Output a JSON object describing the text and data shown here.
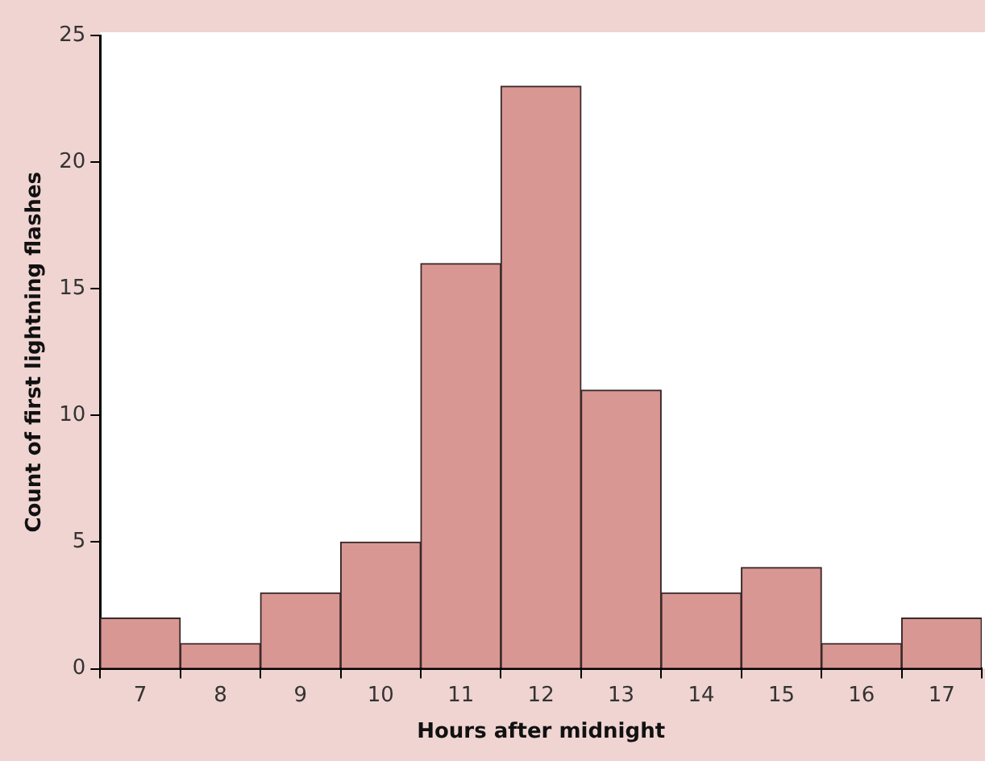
{
  "chart_data": {
    "type": "histogram",
    "xlabel": "Hours after midnight",
    "ylabel": "Count of first lightning flashes",
    "bins": [
      6.5,
      7.5,
      8.5,
      9.5,
      10.5,
      11.5,
      12.5,
      13.5,
      14.5,
      15.5,
      16.5,
      17.5
    ],
    "values": [
      2,
      1,
      3,
      5,
      16,
      23,
      11,
      3,
      4,
      1,
      2
    ],
    "color": "#d99794",
    "xlim": [
      6.5,
      17.5
    ],
    "xticks": [
      7,
      8,
      9,
      10,
      11,
      12,
      13,
      14,
      15,
      16,
      17
    ],
    "ylim": [
      0,
      25
    ],
    "yticks": [
      0,
      5,
      10,
      15,
      20,
      25
    ],
    "grid": false
  }
}
